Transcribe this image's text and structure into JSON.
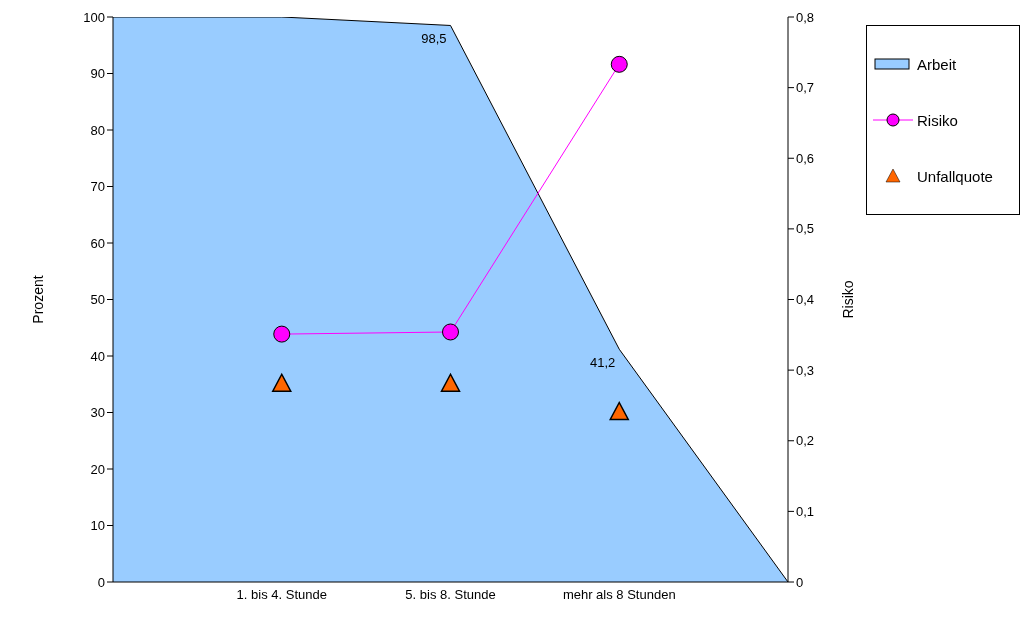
{
  "chart_data": {
    "type": "area",
    "ylabel": "Prozent",
    "y2label": "Risiko",
    "categories": [
      null,
      "1. bis 4. Stunde",
      "5. bis 8. Stunde",
      "mehr als 8 Stunden",
      null
    ],
    "series": [
      {
        "name": "Arbeit",
        "color": "#99ccff",
        "values": [
          100,
          100,
          98.5,
          41.2,
          0
        ],
        "value_labels": [
          null,
          null,
          "98,5",
          "41,2",
          null
        ]
      },
      {
        "name": "Risiko",
        "type": "line",
        "axis": "y2",
        "color": "#ff00ff",
        "marker": "circle",
        "values": [
          null,
          0.351,
          0.354,
          0.733,
          null
        ]
      },
      {
        "name": "Unfallquote",
        "type": "scatter",
        "color": "#ff6600",
        "marker": "triangle",
        "values": [
          null,
          35,
          35,
          30,
          null
        ]
      }
    ],
    "ylim": [
      0,
      100
    ],
    "yticks": [
      0,
      10,
      20,
      30,
      40,
      50,
      60,
      70,
      80,
      90,
      100
    ],
    "y2lim": [
      0,
      0.8
    ],
    "y2ticks": [
      {
        "value": 0,
        "label": "0"
      },
      {
        "value": 0.1,
        "label": "0,1"
      },
      {
        "value": 0.2,
        "label": "0,2"
      },
      {
        "value": 0.3,
        "label": "0,3"
      },
      {
        "value": 0.4,
        "label": "0,4"
      },
      {
        "value": 0.5,
        "label": "0,5"
      },
      {
        "value": 0.6,
        "label": "0,6"
      },
      {
        "value": 0.7,
        "label": "0,7"
      },
      {
        "value": 0.8,
        "label": "0,8"
      }
    ],
    "grid": false,
    "legend": "top right"
  }
}
